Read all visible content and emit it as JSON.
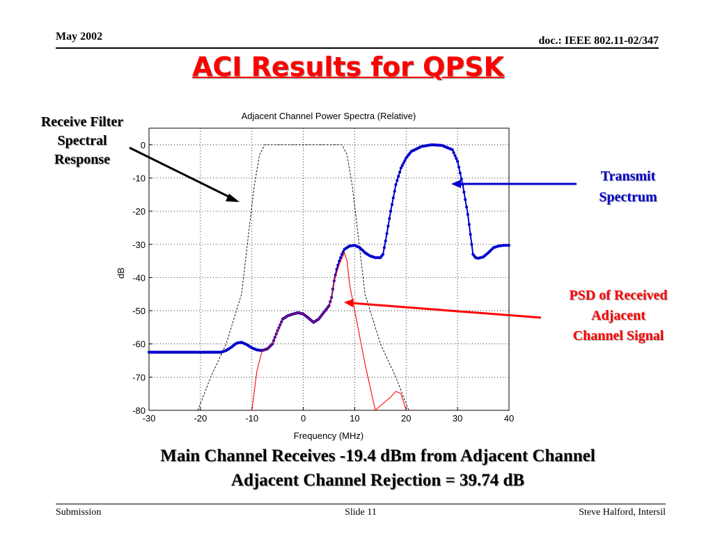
{
  "header": {
    "date": "May 2002",
    "doc": "doc.: IEEE 802.11-02/347"
  },
  "slide_title": "ACI Results for QPSK",
  "annotations": {
    "receive_filter": [
      "Receive Filter",
      "Spectral",
      "Response"
    ],
    "transmit": [
      "Transmit",
      "Spectrum"
    ],
    "psd": [
      "PSD of Received",
      "Adjacent",
      "Channel Signal"
    ]
  },
  "caption": [
    "Main Channel Receives -19.4 dBm from Adjacent Channel",
    "Adjacent Channel Rejection = 39.74 dB"
  ],
  "footer": {
    "left": "Submission",
    "center": "Slide 11",
    "right": "Steve Halford, Intersil"
  },
  "colors": {
    "title": "#ff0000",
    "transmit": "#0000cc",
    "psd": "#ff0000",
    "filter": "#000000",
    "arrow_blue": "#0000cc"
  },
  "chart_data": {
    "type": "line",
    "title": "Adjacent Channel Power Spectra (Relative)",
    "xlabel": "Frequency (MHz)",
    "ylabel": "dB",
    "xlim": [
      -30,
      40
    ],
    "ylim": [
      -80,
      5
    ],
    "xticks": [
      -30,
      -20,
      -10,
      0,
      10,
      20,
      30,
      40
    ],
    "yticks": [
      0,
      -10,
      -20,
      -30,
      -40,
      -50,
      -60,
      -70,
      -80
    ],
    "grid": true,
    "series": [
      {
        "name": "Transmit Spectrum",
        "style": "dotted-markers",
        "points": [
          [
            -30,
            -62.5
          ],
          [
            -16,
            -62.5
          ],
          [
            -15,
            -62
          ],
          [
            -14,
            -61
          ],
          [
            -13,
            -59.8
          ],
          [
            -12,
            -59.5
          ],
          [
            -11,
            -60.2
          ],
          [
            -10,
            -61.2
          ],
          [
            -9,
            -61.8
          ],
          [
            -8,
            -62
          ],
          [
            -7,
            -61.5
          ],
          [
            -6,
            -60
          ],
          [
            -5,
            -56
          ],
          [
            -4,
            -52.5
          ],
          [
            -3,
            -51.5
          ],
          [
            -2,
            -51
          ],
          [
            -1,
            -50.6
          ],
          [
            0,
            -51
          ],
          [
            1,
            -52.2
          ],
          [
            2,
            -53.5
          ],
          [
            3,
            -52.5
          ],
          [
            4,
            -50.5
          ],
          [
            5,
            -48.5
          ],
          [
            5.5,
            -46
          ],
          [
            6,
            -41
          ],
          [
            6.5,
            -37.5
          ],
          [
            7,
            -35
          ],
          [
            7.5,
            -33
          ],
          [
            8,
            -31.5
          ],
          [
            9,
            -30.5
          ],
          [
            10,
            -30.3
          ],
          [
            11,
            -31
          ],
          [
            12,
            -32.5
          ],
          [
            13,
            -33.5
          ],
          [
            14,
            -34
          ],
          [
            15,
            -34
          ],
          [
            15.5,
            -33
          ],
          [
            16,
            -29
          ],
          [
            17,
            -20
          ],
          [
            18,
            -12
          ],
          [
            19,
            -7
          ],
          [
            20,
            -4
          ],
          [
            21,
            -2
          ],
          [
            23,
            -0.5
          ],
          [
            25,
            0
          ],
          [
            27,
            -0.2
          ],
          [
            29,
            -1.5
          ],
          [
            30,
            -5
          ],
          [
            31,
            -12
          ],
          [
            32,
            -21
          ],
          [
            32.5,
            -27
          ],
          [
            33,
            -33
          ],
          [
            33.5,
            -34
          ],
          [
            34,
            -34.2
          ],
          [
            35,
            -33.8
          ],
          [
            36,
            -32.5
          ],
          [
            37,
            -31
          ],
          [
            38,
            -30.5
          ],
          [
            39,
            -30.3
          ],
          [
            40,
            -30.3
          ]
        ]
      },
      {
        "name": "PSD of Received Adjacent Channel Signal",
        "style": "solid-thin",
        "points": [
          [
            -10,
            -80
          ],
          [
            -9,
            -68
          ],
          [
            -8,
            -62
          ],
          [
            -7,
            -61.5
          ],
          [
            -6,
            -60
          ],
          [
            -5,
            -56
          ],
          [
            -4,
            -52.5
          ],
          [
            -3,
            -51.5
          ],
          [
            -2,
            -51
          ],
          [
            -1,
            -50.6
          ],
          [
            0,
            -51
          ],
          [
            1,
            -52.2
          ],
          [
            2,
            -53.5
          ],
          [
            3,
            -52.5
          ],
          [
            4,
            -50.5
          ],
          [
            5,
            -48.5
          ],
          [
            5.5,
            -46
          ],
          [
            6,
            -41
          ],
          [
            7,
            -36
          ],
          [
            8,
            -32.5
          ],
          [
            8.5,
            -35
          ],
          [
            9,
            -42
          ],
          [
            10,
            -50
          ],
          [
            11,
            -58
          ],
          [
            12,
            -66
          ],
          [
            13,
            -73
          ],
          [
            14,
            -80
          ],
          [
            17,
            -76
          ],
          [
            18,
            -74.3
          ],
          [
            19,
            -75
          ],
          [
            20,
            -80
          ]
        ]
      },
      {
        "name": "Receive Filter Spectral Response",
        "style": "dashed-thin",
        "points": [
          [
            -20.5,
            -80
          ],
          [
            -18,
            -70
          ],
          [
            -15,
            -60
          ],
          [
            -12,
            -45
          ],
          [
            -10.5,
            -25
          ],
          [
            -9.5,
            -12
          ],
          [
            -8.5,
            -3
          ],
          [
            -7.5,
            0
          ],
          [
            7.5,
            0
          ],
          [
            8.5,
            -3
          ],
          [
            9.5,
            -12
          ],
          [
            10.5,
            -25
          ],
          [
            12,
            -45
          ],
          [
            15,
            -60
          ],
          [
            18,
            -70
          ],
          [
            20.5,
            -80
          ]
        ]
      }
    ]
  }
}
